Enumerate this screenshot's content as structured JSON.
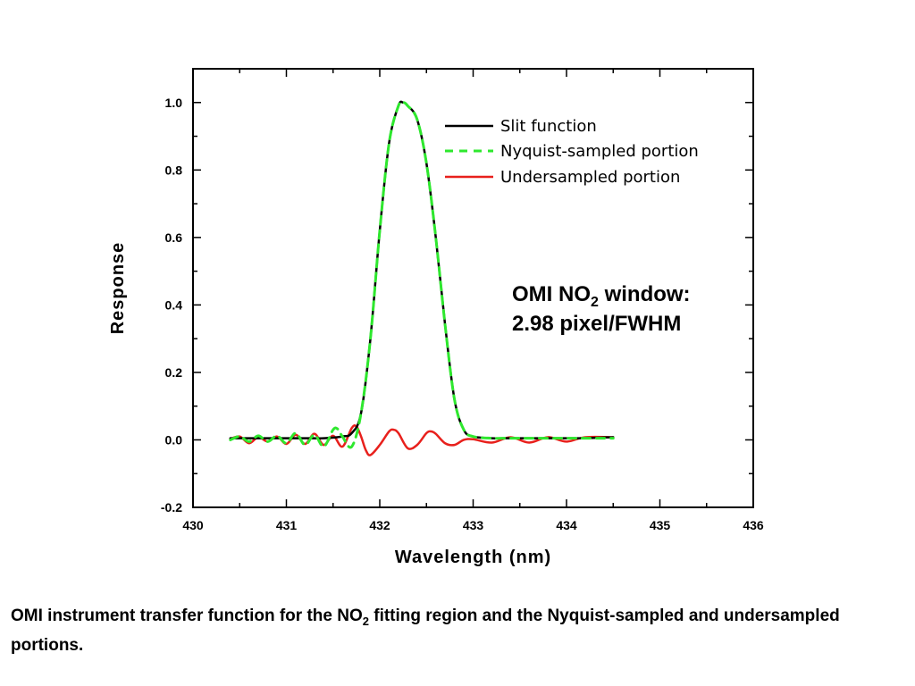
{
  "chart_data": {
    "type": "line",
    "xlabel": "Wavelength (nm)",
    "ylabel": "Response",
    "xlim": [
      430,
      436
    ],
    "ylim": [
      -0.2,
      1.1
    ],
    "x_ticks": [
      "430",
      "431",
      "432",
      "433",
      "434",
      "435",
      "436"
    ],
    "y_ticks": [
      "-0.2",
      "0.0",
      "0.2",
      "0.4",
      "0.6",
      "0.8",
      "1.0"
    ],
    "grid": false,
    "legend_position": "top-right",
    "annotation": {
      "line1_prefix": "OMI NO",
      "line1_sub": "2",
      "line1_suffix": " window:",
      "line2": "2.98 pixel/FWHM"
    },
    "series": [
      {
        "name": "Slit function",
        "color": "#000000",
        "style": "solid",
        "x": [
          430.4,
          430.6,
          430.8,
          431.0,
          431.2,
          431.4,
          431.6,
          431.7,
          431.8,
          431.9,
          432.0,
          432.1,
          432.2,
          432.25,
          432.3,
          432.4,
          432.5,
          432.6,
          432.7,
          432.8,
          432.9,
          433.0,
          433.2,
          433.4,
          433.6,
          433.8,
          434.0,
          434.2,
          434.5
        ],
        "y": [
          0.005,
          0.005,
          0.005,
          0.005,
          0.005,
          0.005,
          0.01,
          0.02,
          0.08,
          0.3,
          0.62,
          0.88,
          0.99,
          1.0,
          0.99,
          0.95,
          0.82,
          0.6,
          0.34,
          0.12,
          0.03,
          0.01,
          0.005,
          0.005,
          0.005,
          0.005,
          0.005,
          0.005,
          0.008
        ]
      },
      {
        "name": "Nyquist-sampled portion",
        "color": "#2ee82e",
        "style": "dashed",
        "x": [
          430.4,
          430.5,
          430.6,
          430.7,
          430.8,
          430.9,
          431.0,
          431.1,
          431.2,
          431.3,
          431.4,
          431.5,
          431.55,
          431.6,
          431.7,
          431.8,
          431.9,
          432.0,
          432.1,
          432.2,
          432.25,
          432.3,
          432.4,
          432.5,
          432.6,
          432.7,
          432.8,
          432.9,
          433.0,
          433.2,
          433.4,
          433.6,
          433.8,
          434.0,
          434.2,
          434.5
        ],
        "y": [
          0.0,
          0.01,
          -0.005,
          0.012,
          -0.005,
          0.012,
          -0.01,
          0.02,
          -0.015,
          0.015,
          -0.02,
          0.03,
          0.032,
          0.01,
          -0.02,
          0.08,
          0.3,
          0.62,
          0.88,
          0.99,
          1.0,
          0.99,
          0.95,
          0.82,
          0.6,
          0.34,
          0.12,
          0.03,
          0.01,
          0.005,
          0.005,
          0.005,
          0.005,
          0.005,
          0.005,
          0.005
        ]
      },
      {
        "name": "Undersampled portion",
        "color": "#e8201c",
        "style": "solid",
        "x": [
          430.4,
          430.5,
          430.6,
          430.7,
          430.8,
          430.9,
          431.0,
          431.1,
          431.2,
          431.3,
          431.4,
          431.5,
          431.6,
          431.7,
          431.75,
          431.8,
          431.85,
          431.9,
          432.0,
          432.1,
          432.15,
          432.2,
          432.3,
          432.4,
          432.5,
          432.55,
          432.6,
          432.7,
          432.8,
          432.9,
          433.0,
          433.2,
          433.4,
          433.6,
          433.8,
          434.0,
          434.2,
          434.5
        ],
        "y": [
          0.003,
          0.01,
          -0.01,
          0.008,
          -0.005,
          0.01,
          -0.012,
          0.015,
          -0.012,
          0.018,
          -0.015,
          0.012,
          -0.02,
          0.035,
          0.04,
          0.01,
          -0.03,
          -0.045,
          -0.015,
          0.025,
          0.03,
          0.02,
          -0.025,
          -0.015,
          0.02,
          0.025,
          0.018,
          -0.01,
          -0.015,
          0.0,
          0.002,
          -0.008,
          0.008,
          -0.008,
          0.008,
          -0.005,
          0.008,
          0.008
        ]
      }
    ]
  },
  "caption": {
    "part1": "OMI instrument transfer function for the NO",
    "sub": "2",
    "part2": " fitting region and the Nyquist-sampled and undersampled portions."
  }
}
